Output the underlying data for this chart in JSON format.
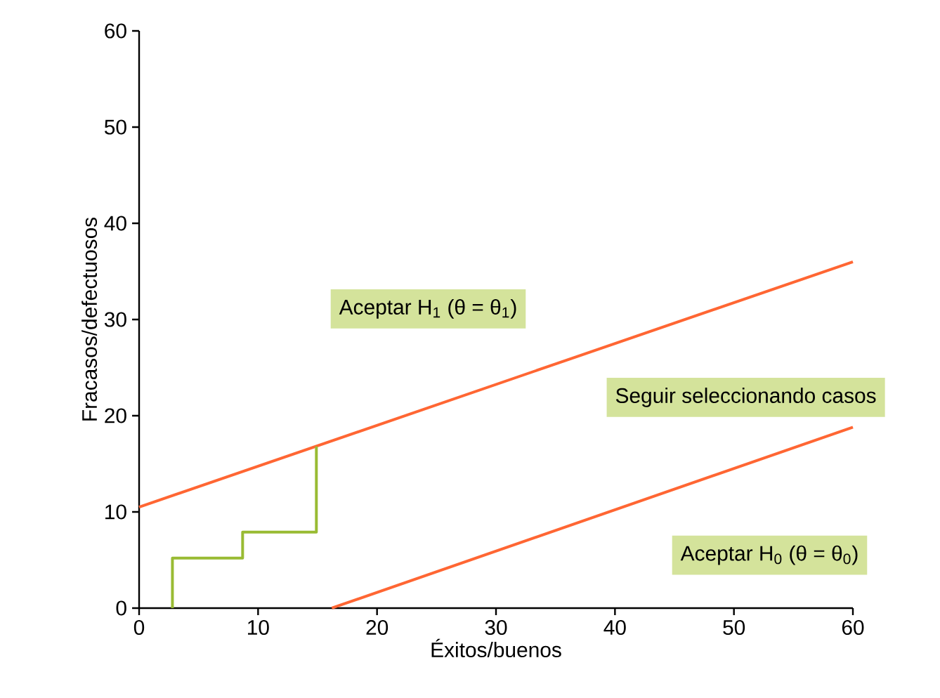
{
  "chart_data": {
    "type": "line",
    "xlabel": "Éxitos/buenos",
    "ylabel": "Fracasos/defectuosos",
    "xlim": [
      0,
      60
    ],
    "ylim": [
      0,
      60
    ],
    "xticks": [
      0,
      10,
      20,
      30,
      40,
      50,
      60
    ],
    "yticks": [
      0,
      10,
      20,
      30,
      40,
      50,
      60
    ],
    "grid": false,
    "marker": "none",
    "line_style": "solid",
    "series": [
      {
        "color": "#ff6633",
        "x": [
          0,
          60
        ],
        "values": [
          10.5,
          36.0
        ]
      },
      {
        "color": "#ff6633",
        "x": [
          16.2,
          60
        ],
        "values": [
          0,
          18.8
        ]
      },
      {
        "color": "#99bb33",
        "x": [
          2.8,
          2.8,
          8.7,
          8.7,
          14.9,
          14.9
        ],
        "values": [
          0,
          5.2,
          5.2,
          7.9,
          7.9,
          16.8
        ]
      }
    ],
    "annotations": [
      "Aceptar H$_{1}$ (θ = θ$_{1}$)",
      "Seguir seleccionando casos",
      "Aceptar H$_{0}$ (θ = θ$_{0}$)"
    ]
  }
}
